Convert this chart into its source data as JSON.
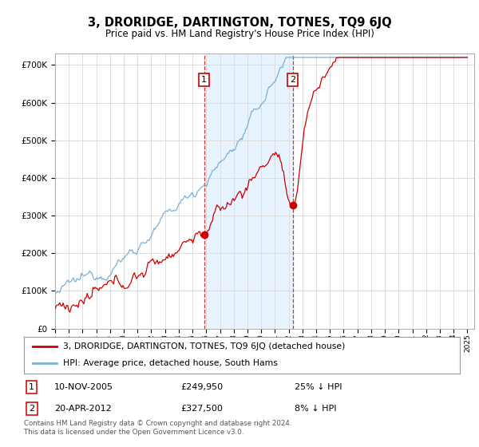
{
  "title": "3, DRORIDGE, DARTINGTON, TOTNES, TQ9 6JQ",
  "subtitle": "Price paid vs. HM Land Registry's House Price Index (HPI)",
  "ylim": [
    0,
    730000
  ],
  "sale1_date": "10-NOV-2005",
  "sale1_price": 249950,
  "sale1_year": 2005.85,
  "sale1_label": "1",
  "sale1_hpi_text": "25% ↓ HPI",
  "sale2_date": "20-APR-2012",
  "sale2_price": 327500,
  "sale2_year": 2012.29,
  "sale2_label": "2",
  "sale2_hpi_text": "8% ↓ HPI",
  "legend_red": "3, DRORIDGE, DARTINGTON, TOTNES, TQ9 6JQ (detached house)",
  "legend_blue": "HPI: Average price, detached house, South Hams",
  "footer": "Contains HM Land Registry data © Crown copyright and database right 2024.\nThis data is licensed under the Open Government Licence v3.0.",
  "red_color": "#cc0000",
  "blue_color": "#7bafd4",
  "shading_color": "#ddeeff",
  "box_color": "#cc0000",
  "grid_color": "#dddddd",
  "xstart": 1995,
  "xend": 2025
}
